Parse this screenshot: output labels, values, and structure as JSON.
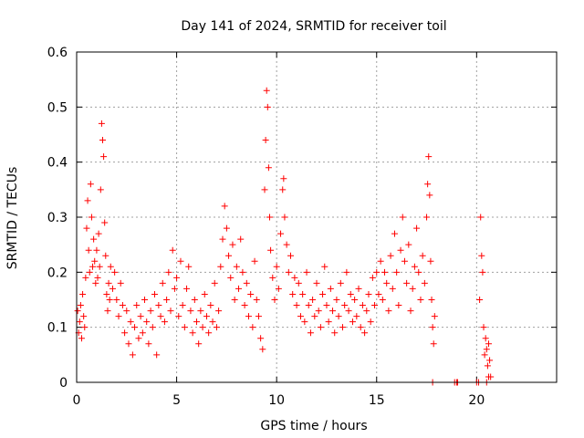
{
  "chart_data": {
    "type": "scatter",
    "title": "Day 141 of 2024, SRMTID for receiver toil",
    "xlabel": "GPS time / hours",
    "ylabel": "SRMTID / TECUs",
    "xlim": [
      0,
      24
    ],
    "ylim": [
      0,
      0.6
    ],
    "grid": true,
    "marker": "+",
    "color": "#ff0000",
    "x_ticks": [
      0,
      5,
      10,
      15,
      20
    ],
    "x_tick_labels": [
      "0",
      "5",
      "10",
      "15",
      "20"
    ],
    "y_ticks": [
      0,
      0.1,
      0.2,
      0.3,
      0.4,
      0.5,
      0.6
    ],
    "y_tick_labels": [
      "0",
      "0.1",
      "0.2",
      "0.3",
      "0.4",
      "0.5",
      "0.6"
    ],
    "series": [
      {
        "name": "SRMTID",
        "points": [
          [
            0.05,
            0.13
          ],
          [
            0.1,
            0.09
          ],
          [
            0.15,
            0.11
          ],
          [
            0.2,
            0.14
          ],
          [
            0.25,
            0.08
          ],
          [
            0.3,
            0.16
          ],
          [
            0.35,
            0.12
          ],
          [
            0.4,
            0.1
          ],
          [
            0.45,
            0.19
          ],
          [
            0.5,
            0.28
          ],
          [
            0.55,
            0.33
          ],
          [
            0.6,
            0.24
          ],
          [
            0.65,
            0.2
          ],
          [
            0.7,
            0.36
          ],
          [
            0.75,
            0.3
          ],
          [
            0.8,
            0.21
          ],
          [
            0.85,
            0.26
          ],
          [
            0.9,
            0.22
          ],
          [
            0.95,
            0.18
          ],
          [
            1.0,
            0.24
          ],
          [
            1.05,
            0.19
          ],
          [
            1.1,
            0.27
          ],
          [
            1.15,
            0.21
          ],
          [
            1.2,
            0.35
          ],
          [
            1.25,
            0.47
          ],
          [
            1.3,
            0.44
          ],
          [
            1.35,
            0.41
          ],
          [
            1.4,
            0.29
          ],
          [
            1.45,
            0.23
          ],
          [
            1.5,
            0.16
          ],
          [
            1.55,
            0.13
          ],
          [
            1.6,
            0.18
          ],
          [
            1.65,
            0.15
          ],
          [
            1.7,
            0.21
          ],
          [
            1.8,
            0.17
          ],
          [
            1.9,
            0.2
          ],
          [
            2.0,
            0.15
          ],
          [
            2.1,
            0.12
          ],
          [
            2.2,
            0.18
          ],
          [
            2.3,
            0.14
          ],
          [
            2.4,
            0.09
          ],
          [
            2.5,
            0.13
          ],
          [
            2.6,
            0.07
          ],
          [
            2.7,
            0.11
          ],
          [
            2.8,
            0.05
          ],
          [
            2.9,
            0.1
          ],
          [
            3.0,
            0.14
          ],
          [
            3.1,
            0.08
          ],
          [
            3.2,
            0.12
          ],
          [
            3.3,
            0.09
          ],
          [
            3.4,
            0.15
          ],
          [
            3.5,
            0.11
          ],
          [
            3.6,
            0.07
          ],
          [
            3.7,
            0.13
          ],
          [
            3.8,
            0.1
          ],
          [
            3.9,
            0.16
          ],
          [
            4.0,
            0.05
          ],
          [
            4.1,
            0.14
          ],
          [
            4.2,
            0.12
          ],
          [
            4.3,
            0.18
          ],
          [
            4.4,
            0.11
          ],
          [
            4.5,
            0.15
          ],
          [
            4.6,
            0.2
          ],
          [
            4.7,
            0.13
          ],
          [
            4.8,
            0.24
          ],
          [
            4.9,
            0.17
          ],
          [
            5.0,
            0.19
          ],
          [
            5.1,
            0.12
          ],
          [
            5.2,
            0.22
          ],
          [
            5.3,
            0.14
          ],
          [
            5.4,
            0.1
          ],
          [
            5.5,
            0.17
          ],
          [
            5.6,
            0.21
          ],
          [
            5.7,
            0.13
          ],
          [
            5.8,
            0.09
          ],
          [
            5.9,
            0.15
          ],
          [
            6.0,
            0.11
          ],
          [
            6.1,
            0.07
          ],
          [
            6.2,
            0.13
          ],
          [
            6.3,
            0.1
          ],
          [
            6.4,
            0.16
          ],
          [
            6.5,
            0.12
          ],
          [
            6.6,
            0.09
          ],
          [
            6.7,
            0.14
          ],
          [
            6.8,
            0.11
          ],
          [
            6.9,
            0.18
          ],
          [
            7.0,
            0.1
          ],
          [
            7.1,
            0.13
          ],
          [
            7.2,
            0.21
          ],
          [
            7.3,
            0.26
          ],
          [
            7.4,
            0.32
          ],
          [
            7.5,
            0.28
          ],
          [
            7.6,
            0.23
          ],
          [
            7.7,
            0.19
          ],
          [
            7.8,
            0.25
          ],
          [
            7.9,
            0.15
          ],
          [
            8.0,
            0.21
          ],
          [
            8.1,
            0.17
          ],
          [
            8.2,
            0.26
          ],
          [
            8.3,
            0.2
          ],
          [
            8.4,
            0.14
          ],
          [
            8.5,
            0.18
          ],
          [
            8.6,
            0.12
          ],
          [
            8.7,
            0.16
          ],
          [
            8.8,
            0.1
          ],
          [
            8.9,
            0.22
          ],
          [
            9.0,
            0.15
          ],
          [
            9.1,
            0.12
          ],
          [
            9.2,
            0.08
          ],
          [
            9.3,
            0.06
          ],
          [
            9.4,
            0.35
          ],
          [
            9.45,
            0.44
          ],
          [
            9.5,
            0.53
          ],
          [
            9.55,
            0.5
          ],
          [
            9.6,
            0.39
          ],
          [
            9.65,
            0.3
          ],
          [
            9.7,
            0.24
          ],
          [
            9.8,
            0.19
          ],
          [
            9.9,
            0.15
          ],
          [
            10.0,
            0.21
          ],
          [
            10.1,
            0.17
          ],
          [
            10.2,
            0.27
          ],
          [
            10.3,
            0.35
          ],
          [
            10.35,
            0.37
          ],
          [
            10.4,
            0.3
          ],
          [
            10.5,
            0.25
          ],
          [
            10.6,
            0.2
          ],
          [
            10.7,
            0.23
          ],
          [
            10.8,
            0.16
          ],
          [
            10.9,
            0.19
          ],
          [
            11.0,
            0.14
          ],
          [
            11.1,
            0.18
          ],
          [
            11.2,
            0.12
          ],
          [
            11.3,
            0.16
          ],
          [
            11.4,
            0.11
          ],
          [
            11.5,
            0.2
          ],
          [
            11.6,
            0.14
          ],
          [
            11.7,
            0.09
          ],
          [
            11.8,
            0.15
          ],
          [
            11.9,
            0.12
          ],
          [
            12.0,
            0.18
          ],
          [
            12.1,
            0.13
          ],
          [
            12.2,
            0.1
          ],
          [
            12.3,
            0.16
          ],
          [
            12.4,
            0.21
          ],
          [
            12.5,
            0.14
          ],
          [
            12.6,
            0.11
          ],
          [
            12.7,
            0.17
          ],
          [
            12.8,
            0.13
          ],
          [
            12.9,
            0.09
          ],
          [
            13.0,
            0.15
          ],
          [
            13.1,
            0.12
          ],
          [
            13.2,
            0.18
          ],
          [
            13.3,
            0.1
          ],
          [
            13.4,
            0.14
          ],
          [
            13.5,
            0.2
          ],
          [
            13.6,
            0.13
          ],
          [
            13.7,
            0.16
          ],
          [
            13.8,
            0.11
          ],
          [
            13.9,
            0.15
          ],
          [
            14.0,
            0.12
          ],
          [
            14.1,
            0.17
          ],
          [
            14.2,
            0.1
          ],
          [
            14.3,
            0.14
          ],
          [
            14.4,
            0.09
          ],
          [
            14.5,
            0.13
          ],
          [
            14.6,
            0.16
          ],
          [
            14.7,
            0.11
          ],
          [
            14.8,
            0.19
          ],
          [
            14.9,
            0.14
          ],
          [
            15.0,
            0.2
          ],
          [
            15.1,
            0.16
          ],
          [
            15.2,
            0.22
          ],
          [
            15.3,
            0.15
          ],
          [
            15.4,
            0.2
          ],
          [
            15.5,
            0.18
          ],
          [
            15.6,
            0.13
          ],
          [
            15.7,
            0.23
          ],
          [
            15.8,
            0.17
          ],
          [
            15.9,
            0.27
          ],
          [
            16.0,
            0.2
          ],
          [
            16.1,
            0.14
          ],
          [
            16.2,
            0.24
          ],
          [
            16.3,
            0.3
          ],
          [
            16.4,
            0.22
          ],
          [
            16.5,
            0.18
          ],
          [
            16.6,
            0.25
          ],
          [
            16.7,
            0.13
          ],
          [
            16.8,
            0.17
          ],
          [
            16.9,
            0.21
          ],
          [
            17.0,
            0.28
          ],
          [
            17.1,
            0.2
          ],
          [
            17.2,
            0.15
          ],
          [
            17.3,
            0.23
          ],
          [
            17.4,
            0.18
          ],
          [
            17.5,
            0.3
          ],
          [
            17.55,
            0.36
          ],
          [
            17.6,
            0.41
          ],
          [
            17.65,
            0.34
          ],
          [
            17.7,
            0.22
          ],
          [
            17.75,
            0.15
          ],
          [
            17.8,
            0.1
          ],
          [
            17.85,
            0.07
          ],
          [
            17.9,
            0.12
          ],
          [
            17.8,
            0.0
          ],
          [
            18.9,
            0.0
          ],
          [
            19.0,
            0.0
          ],
          [
            19.05,
            0.0
          ],
          [
            20.0,
            0.0
          ],
          [
            20.1,
            0.0
          ],
          [
            20.15,
            0.15
          ],
          [
            20.2,
            0.3
          ],
          [
            20.25,
            0.23
          ],
          [
            20.3,
            0.2
          ],
          [
            20.35,
            0.1
          ],
          [
            20.4,
            0.05
          ],
          [
            20.45,
            0.08
          ],
          [
            20.5,
            0.06
          ],
          [
            20.55,
            0.03
          ],
          [
            20.6,
            0.07
          ],
          [
            20.65,
            0.04
          ],
          [
            20.7,
            0.01
          ],
          [
            20.5,
            0.0
          ],
          [
            20.6,
            0.01
          ]
        ]
      }
    ]
  }
}
